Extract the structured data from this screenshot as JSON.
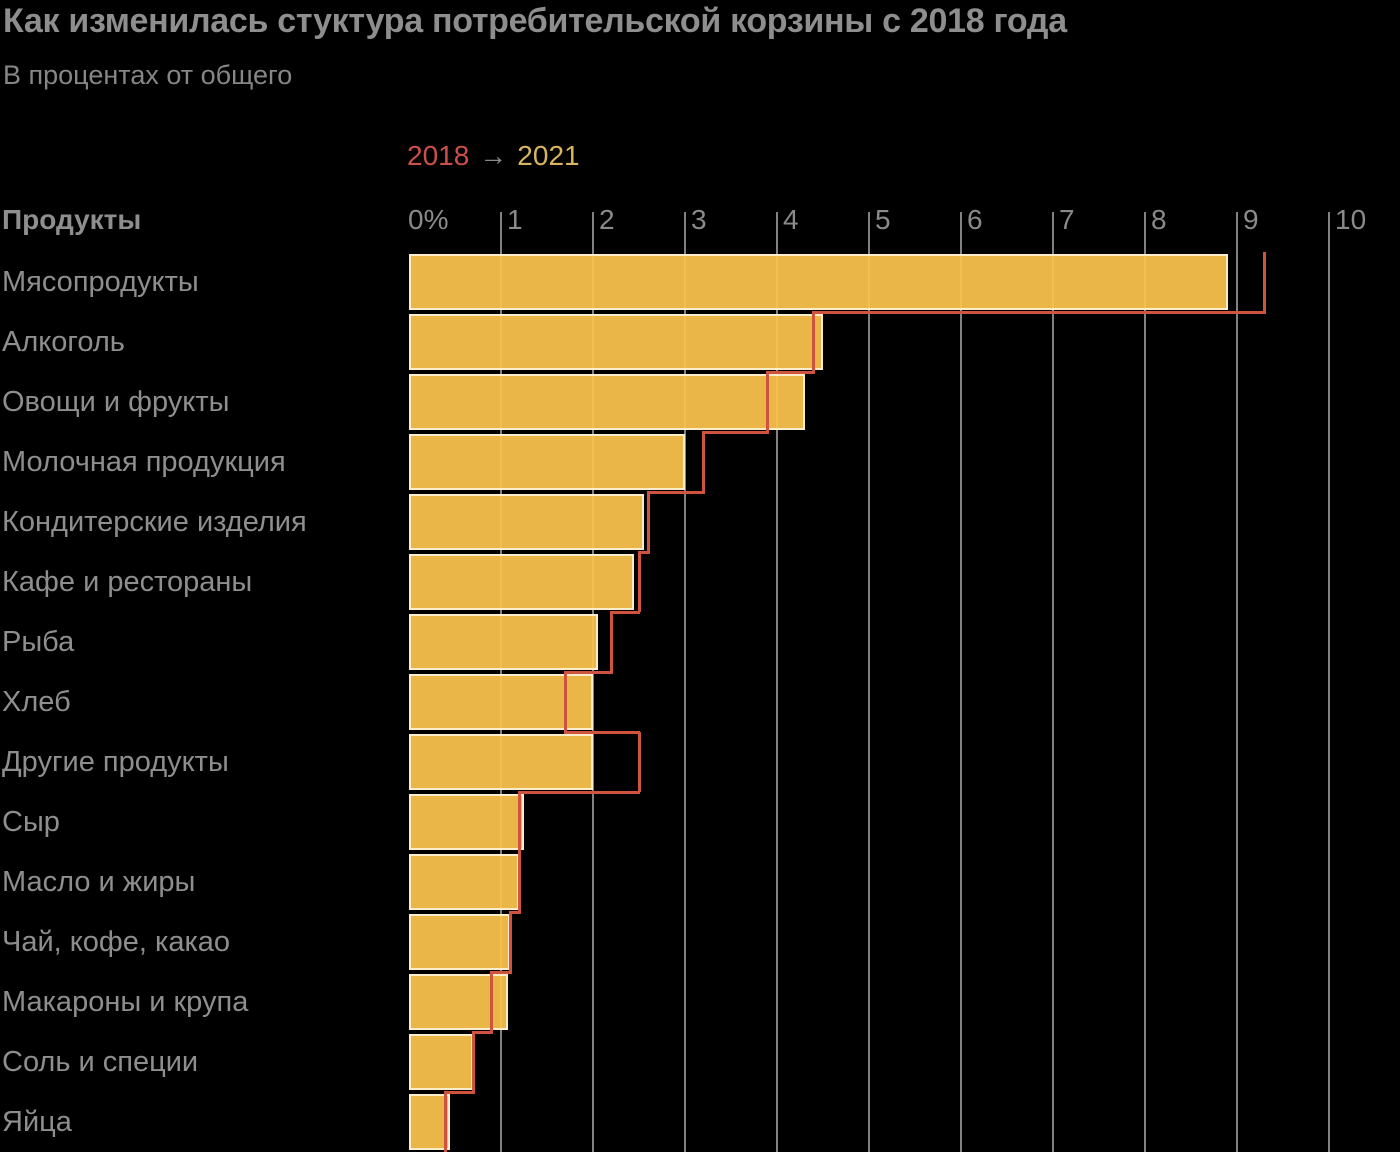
{
  "title": "Как изменилась стуктура потребительской корзины с 2018 года",
  "subtitle": "В процентах от общего",
  "legend": {
    "label_2018": "2018",
    "arrow": "→",
    "label_2021": "2021",
    "color_2018": "#cd4f49",
    "color_2021": "#d9b560"
  },
  "colors": {
    "background": "#000000",
    "bar_fill_2021": "#fdc44e",
    "bar_stroke": "#fff6e0",
    "line_2018": "#d05340",
    "grid": "#828282",
    "text": "#8e8e8e"
  },
  "chart_data": {
    "type": "bar",
    "orientation": "horizontal",
    "title": "Как изменилась стуктура потребительской корзины с 2018 года",
    "subtitle": "В процентах от общего",
    "xlabel": "",
    "ylabel": "Продукты",
    "unit": "% от общего",
    "xlim": [
      0,
      10
    ],
    "x_ticks": [
      "0%",
      "1",
      "2",
      "3",
      "4",
      "5",
      "6",
      "7",
      "8",
      "9",
      "10"
    ],
    "grid": true,
    "legend_position": "top",
    "categories_header": "Продукты",
    "categories": [
      "Мясопродукты",
      "Алкоголь",
      "Овощи и фрукты",
      "Молочная продукция",
      "Кондитерские изделия",
      "Кафе и рестораны",
      "Рыба",
      "Хлеб",
      "Другие продукты",
      "Сыр",
      "Масло и жиры",
      "Чай, кофе, какао",
      "Макароны и крупа",
      "Соль и специи",
      "Яйца"
    ],
    "series": [
      {
        "name": "2018",
        "style": "step-outline",
        "color": "#d05340",
        "values": [
          9.3,
          4.4,
          3.9,
          3.2,
          2.6,
          2.5,
          2.2,
          1.7,
          2.5,
          1.2,
          1.2,
          1.1,
          0.9,
          0.7,
          0.4
        ]
      },
      {
        "name": "2021",
        "style": "bar",
        "color": "#fdc44e",
        "values": [
          8.9,
          4.5,
          4.3,
          3.0,
          2.55,
          2.45,
          2.05,
          2.0,
          2.0,
          1.25,
          1.2,
          1.1,
          1.08,
          0.7,
          0.45
        ]
      }
    ]
  }
}
